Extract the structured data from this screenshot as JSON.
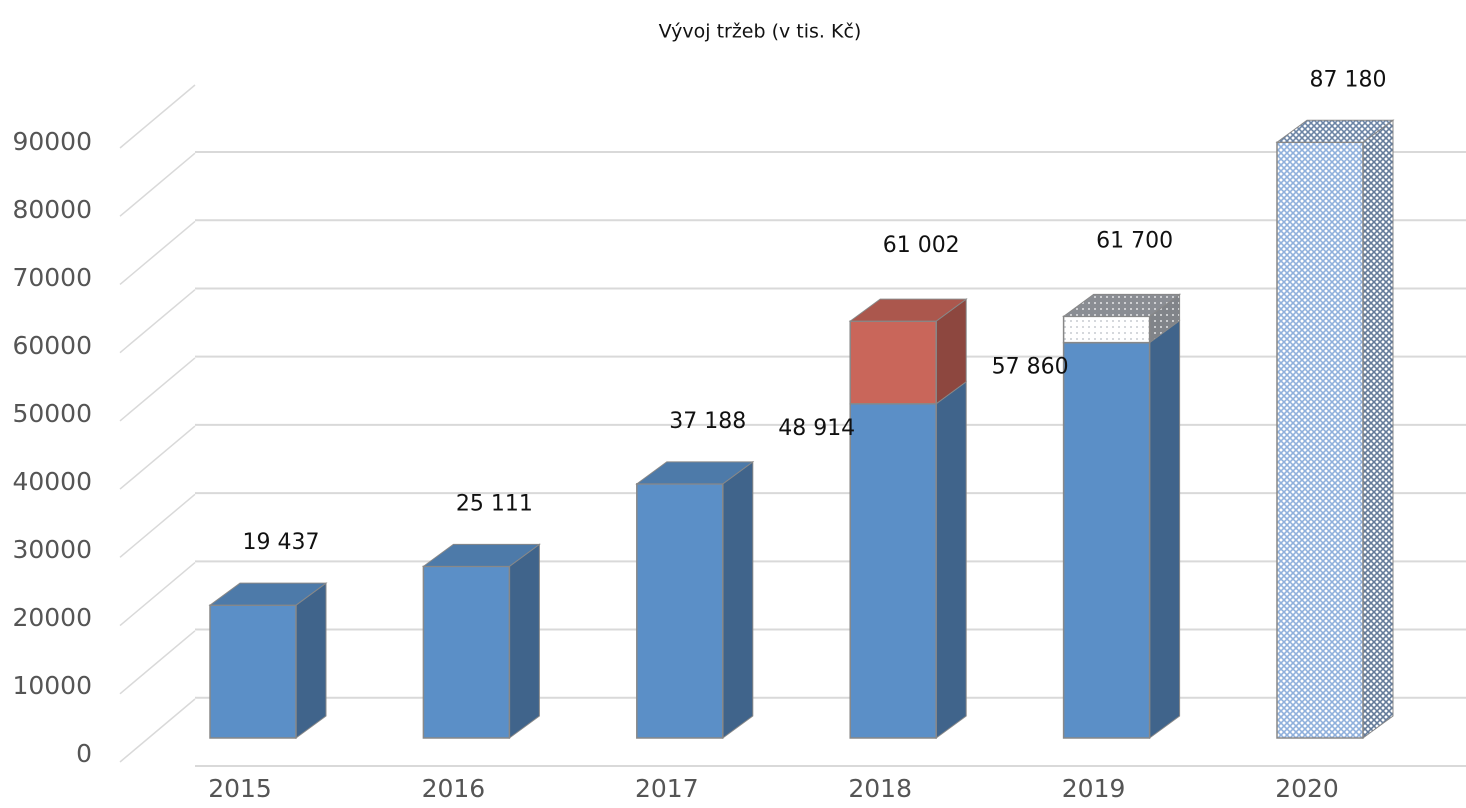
{
  "chart_data": {
    "type": "bar3d_stacked",
    "title": "Vývoj tržeb (v tis. Kč)",
    "categories": [
      "2015",
      "2016",
      "2017",
      "2018",
      "2019",
      "2020"
    ],
    "series": [
      {
        "color": "#5b8fc7",
        "values": [
          19437,
          25111,
          37188,
          48914,
          57860,
          null
        ],
        "value_labels": [
          "19 437",
          "25 111",
          "37 188",
          "48 914",
          "57 860",
          null
        ]
      },
      {
        "color": "#c9665a",
        "values": [
          null,
          null,
          null,
          12088,
          null,
          null
        ]
      },
      {
        "color": "#b8bcc4",
        "pattern": "dots",
        "values": [
          null,
          null,
          null,
          null,
          3840,
          null
        ]
      },
      {
        "color": "#8fb0dc",
        "pattern": "crosshatch",
        "values": [
          null,
          null,
          null,
          null,
          null,
          87180
        ],
        "value_labels": [
          null,
          null,
          null,
          null,
          null,
          "87 180"
        ]
      }
    ],
    "totals": [
      null,
      null,
      null,
      61002,
      61700,
      null
    ],
    "total_labels": [
      null,
      null,
      null,
      "61 002",
      "61 700",
      null
    ],
    "ylim": [
      0,
      90000
    ],
    "yticks": [
      0,
      10000,
      20000,
      30000,
      40000,
      50000,
      60000,
      70000,
      80000,
      90000
    ],
    "grid": true
  }
}
